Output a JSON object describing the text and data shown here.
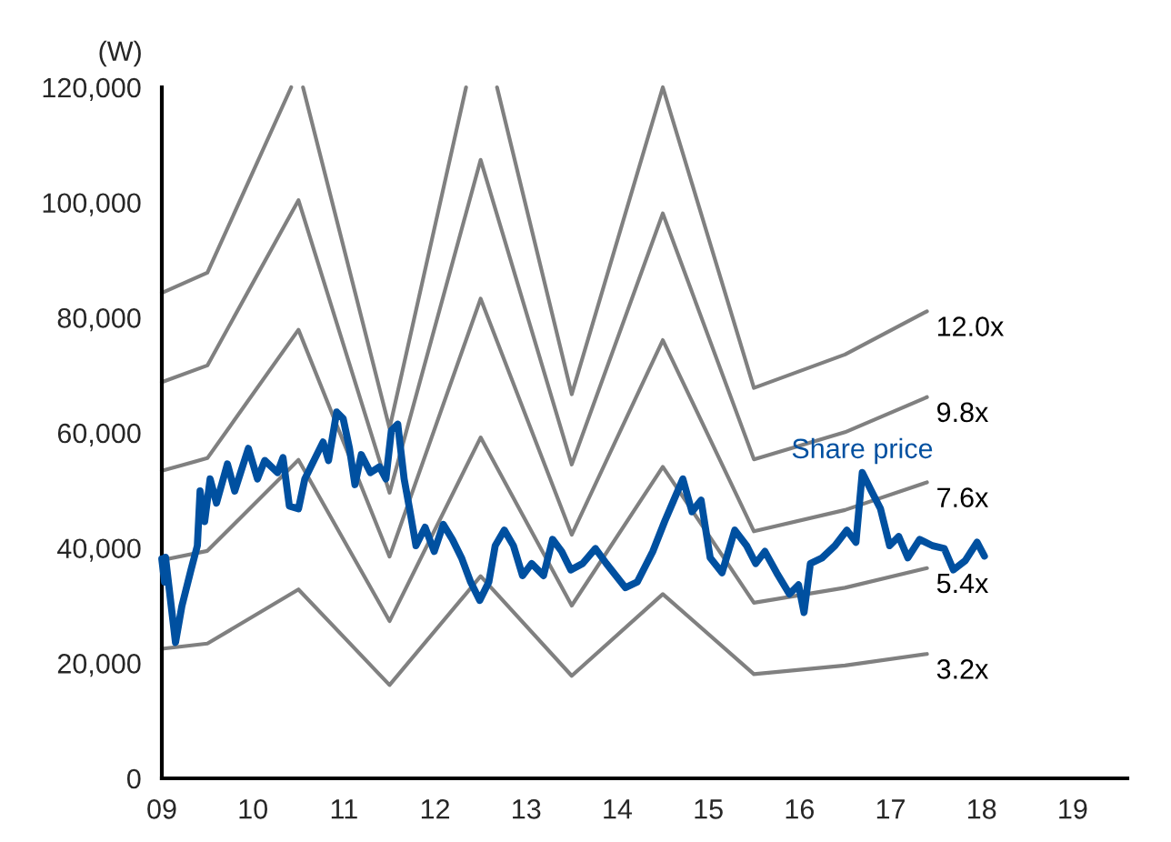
{
  "chart_data": {
    "type": "line",
    "ylabel": "(W)",
    "xlim": [
      9,
      19.6
    ],
    "ylim": [
      0,
      120000
    ],
    "xticks": [
      {
        "value": 9,
        "label": "09"
      },
      10,
      11,
      12,
      13,
      14,
      15,
      16,
      17,
      18,
      19
    ],
    "yticks": [
      {
        "value": 0,
        "label": "0"
      },
      {
        "value": 20000,
        "label": "20,000"
      },
      {
        "value": 40000,
        "label": "40,000"
      },
      {
        "value": 60000,
        "label": "60,000"
      },
      {
        "value": 80000,
        "label": "80,000"
      },
      {
        "value": 100000,
        "label": "100,000"
      },
      {
        "value": 120000,
        "label": "120,000"
      }
    ],
    "grid": false,
    "legend": false,
    "marker": "none",
    "line_style": "solid",
    "series": [
      {
        "name": "12.0x",
        "color": "#808080",
        "x": [
          9,
          9.5,
          10.42,
          10.5,
          10.55,
          11.5,
          12.34,
          12.5,
          12.68,
          13.5,
          14.5,
          15.5,
          16.5,
          17.4
        ],
        "values": [
          84300,
          87800,
          120000,
          null,
          120000,
          60800,
          120000,
          null,
          120000,
          66700,
          120000,
          67800,
          73600,
          81100
        ]
      },
      {
        "name": "9.8x",
        "color": "#808080",
        "x": [
          9,
          9.5,
          10.5,
          11.5,
          12.5,
          13.5,
          14.5,
          15.5,
          16.5,
          17.4
        ],
        "values": [
          68800,
          71700,
          100400,
          49600,
          107400,
          54500,
          98100,
          55400,
          60100,
          66200
        ]
      },
      {
        "name": "7.6x",
        "color": "#808080",
        "x": [
          9,
          9.5,
          10.5,
          11.5,
          12.5,
          13.5,
          14.5,
          15.5,
          16.5,
          17.4
        ],
        "values": [
          53400,
          55600,
          77900,
          38500,
          83300,
          42300,
          76100,
          42900,
          46600,
          51400
        ]
      },
      {
        "name": "5.4x",
        "color": "#808080",
        "x": [
          9,
          9.5,
          10.5,
          11.5,
          12.5,
          13.5,
          14.5,
          15.5,
          16.5,
          17.4
        ],
        "values": [
          37900,
          39500,
          55300,
          27300,
          59200,
          30000,
          54100,
          30500,
          33100,
          36500
        ]
      },
      {
        "name": "3.2x",
        "color": "#808080",
        "x": [
          9,
          9.5,
          10.5,
          11.5,
          12.5,
          13.5,
          14.5,
          15.5,
          16.5,
          17.4
        ],
        "values": [
          22500,
          23400,
          32800,
          16200,
          35100,
          17800,
          32000,
          18100,
          19600,
          21600
        ]
      },
      {
        "name": "Share price",
        "color": "#0050a0",
        "x": [
          9.0,
          9.03,
          9.04,
          9.15,
          9.22,
          9.32,
          9.39,
          9.42,
          9.47,
          9.53,
          9.6,
          9.72,
          9.8,
          9.95,
          10.05,
          10.13,
          10.27,
          10.33,
          10.4,
          10.5,
          10.57,
          10.67,
          10.77,
          10.83,
          10.92,
          10.99,
          11.06,
          11.12,
          11.19,
          11.29,
          11.39,
          11.46,
          11.52,
          11.59,
          11.66,
          11.72,
          11.79,
          11.89,
          11.99,
          12.09,
          12.19,
          12.29,
          12.39,
          12.49,
          12.59,
          12.66,
          12.76,
          12.86,
          12.96,
          13.06,
          13.19,
          13.29,
          13.39,
          13.49,
          13.62,
          13.76,
          13.88,
          14.09,
          14.22,
          14.39,
          14.52,
          14.62,
          14.72,
          14.82,
          14.92,
          15.02,
          15.15,
          15.29,
          15.42,
          15.52,
          15.62,
          15.75,
          15.89,
          15.99,
          16.05,
          16.12,
          16.25,
          16.39,
          16.52,
          16.62,
          16.69,
          16.79,
          16.89,
          16.99,
          17.09,
          17.19,
          17.32,
          17.46,
          17.59,
          17.69,
          17.82,
          17.95,
          18.03
        ],
        "values": [
          38100,
          34100,
          38400,
          23600,
          29900,
          36200,
          40400,
          49900,
          44600,
          52000,
          47800,
          54600,
          49900,
          57300,
          52000,
          55200,
          53100,
          55700,
          47300,
          46800,
          52000,
          55200,
          58400,
          55200,
          63600,
          62500,
          57300,
          51000,
          56200,
          53100,
          54100,
          52000,
          60400,
          61500,
          52000,
          46800,
          40400,
          43600,
          39400,
          44100,
          41500,
          38300,
          34100,
          30900,
          34100,
          40400,
          43100,
          40400,
          35200,
          37300,
          35200,
          41500,
          39400,
          36200,
          37300,
          39900,
          37300,
          33100,
          34100,
          39400,
          44600,
          48300,
          52000,
          46300,
          48300,
          38300,
          35700,
          43100,
          40400,
          37300,
          39400,
          35700,
          32000,
          33600,
          28800,
          37300,
          38300,
          40400,
          43100,
          41000,
          53100,
          49900,
          46800,
          40400,
          42000,
          38300,
          41500,
          40400,
          39900,
          36200,
          37800,
          41000,
          38600
        ]
      }
    ]
  }
}
